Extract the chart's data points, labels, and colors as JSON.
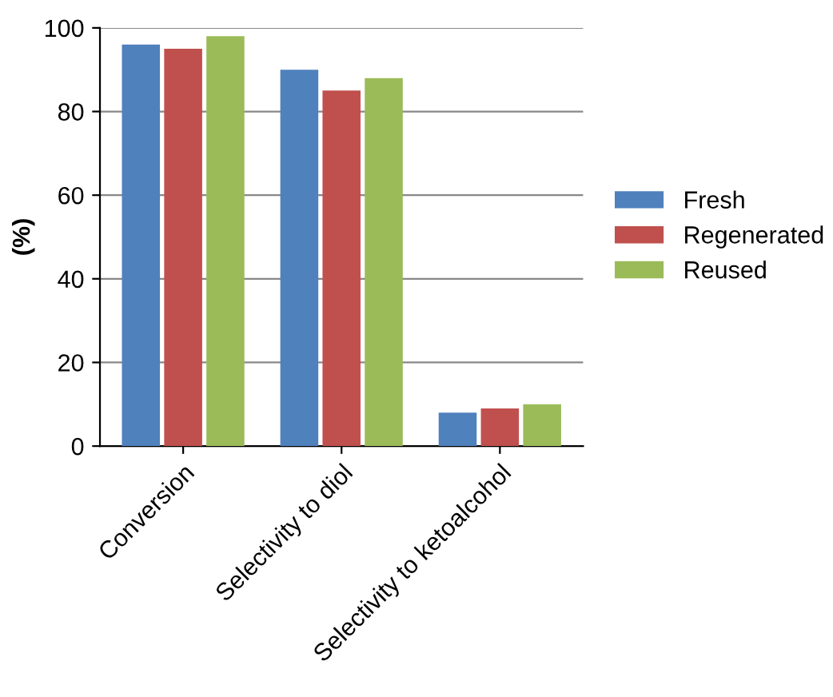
{
  "chart_data": {
    "type": "bar",
    "ylabel": "(%)",
    "categories": [
      "Conversion",
      "Selectivity to diol",
      "Selectivity to ketoalcohol"
    ],
    "series": [
      {
        "name": "Fresh",
        "color": "#4f81bd",
        "values": [
          96,
          90,
          8
        ]
      },
      {
        "name": "Regenerated",
        "color": "#c0504d",
        "values": [
          95,
          85,
          9
        ]
      },
      {
        "name": "Reused",
        "color": "#9bbb59",
        "values": [
          98,
          88,
          10
        ]
      }
    ],
    "ylim": [
      0,
      100
    ],
    "yticks": [
      0,
      20,
      40,
      60,
      80,
      100
    ],
    "grid": "y",
    "legend": "right"
  }
}
